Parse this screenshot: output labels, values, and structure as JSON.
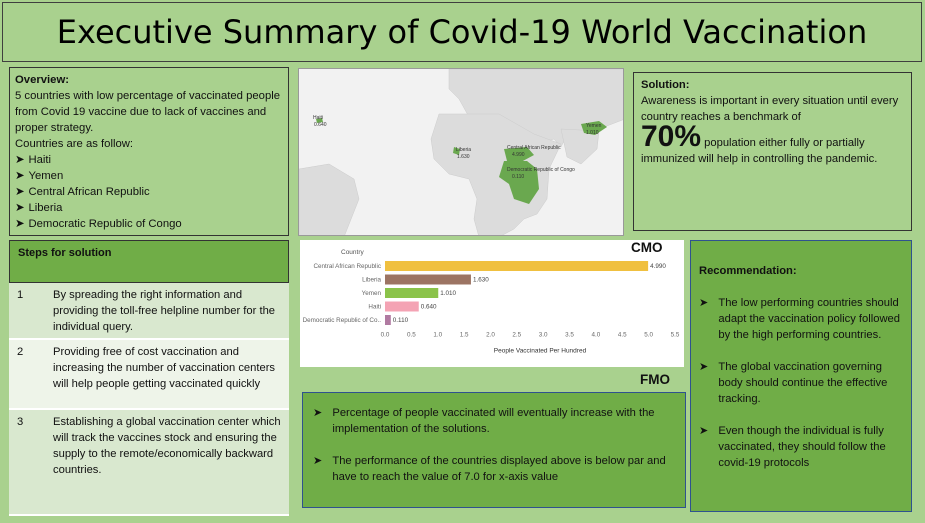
{
  "title": "Executive Summary of Covid-19 World Vaccination",
  "overview": {
    "heading": "Overview:",
    "text": "5 countries with low percentage of vaccinated people from Covid 19 vaccine due to lack of vaccines and proper strategy.",
    "list_intro": "Countries are as follow:",
    "countries": [
      "Haiti",
      "Yemen",
      "Central African Republic",
      "Liberia",
      "Democratic Republic of Congo"
    ]
  },
  "map": {
    "labels": [
      "Haiti",
      "Liberia",
      "Central African Republic",
      "Democratic Republic of Congo",
      "Yemen"
    ],
    "values": [
      "0.640",
      "1.630",
      "4.990",
      "0.110",
      "1.010"
    ]
  },
  "solution": {
    "heading": "Solution:",
    "text1": "Awareness is important in every situation until every country reaches a benchmark of",
    "big": "70%",
    "text2": "population either fully or partially",
    "text3": "immunized will help in controlling the pandemic."
  },
  "steps": {
    "heading": "Steps for solution",
    "rows": [
      {
        "num": "1",
        "text": "By spreading the right information and providing the toll-free helpline number for the individual query."
      },
      {
        "num": "2",
        "text": "Providing free of cost vaccination and increasing the number of vaccination centers will help people getting vaccinated quickly"
      },
      {
        "num": "3",
        "text": "Establishing a global vaccination center which will track the vaccines stock and ensuring the supply to the remote/economically backward countries."
      }
    ]
  },
  "cmo_label": "CMO",
  "fmo_label": "FMO",
  "fmo_points": [
    "Percentage of people vaccinated will eventually increase with the implementation of the solutions.",
    "The performance of the countries displayed above is below par and have to reach the value of 7.0 for x-axis value"
  ],
  "recommendation": {
    "heading": "Recommendation:",
    "points": [
      "The low performing countries should adapt the vaccination policy followed by the high performing countries.",
      "The global vaccination governing body should continue the effective tracking.",
      "Even though the individual is fully vaccinated, they should follow the covid-19 protocols"
    ]
  },
  "colors": {
    "bg": "#a9d18e",
    "dark_green": "#70ad47",
    "map_green": "#6aa84f"
  },
  "chart_data": {
    "type": "bar",
    "orientation": "horizontal",
    "legend_title": "Country",
    "categories": [
      "Central African Republic",
      "Liberia",
      "Yemen",
      "Haiti",
      "Democratic Republic of Co.."
    ],
    "values": [
      4.99,
      1.63,
      1.01,
      0.64,
      0.11
    ],
    "value_labels": [
      "4.990",
      "1.630",
      "1.010",
      "0.640",
      "0.110"
    ],
    "colors": [
      "#f0c040",
      "#9c7463",
      "#8bc34a",
      "#f4a3b4",
      "#b07aa1"
    ],
    "xlabel": "People Vaccinated Per Hundred",
    "xlim": [
      0,
      5.5
    ],
    "ticks": [
      "0.0",
      "0.5",
      "1.0",
      "1.5",
      "2.0",
      "2.5",
      "3.0",
      "3.5",
      "4.0",
      "4.5",
      "5.0",
      "5.5"
    ]
  }
}
